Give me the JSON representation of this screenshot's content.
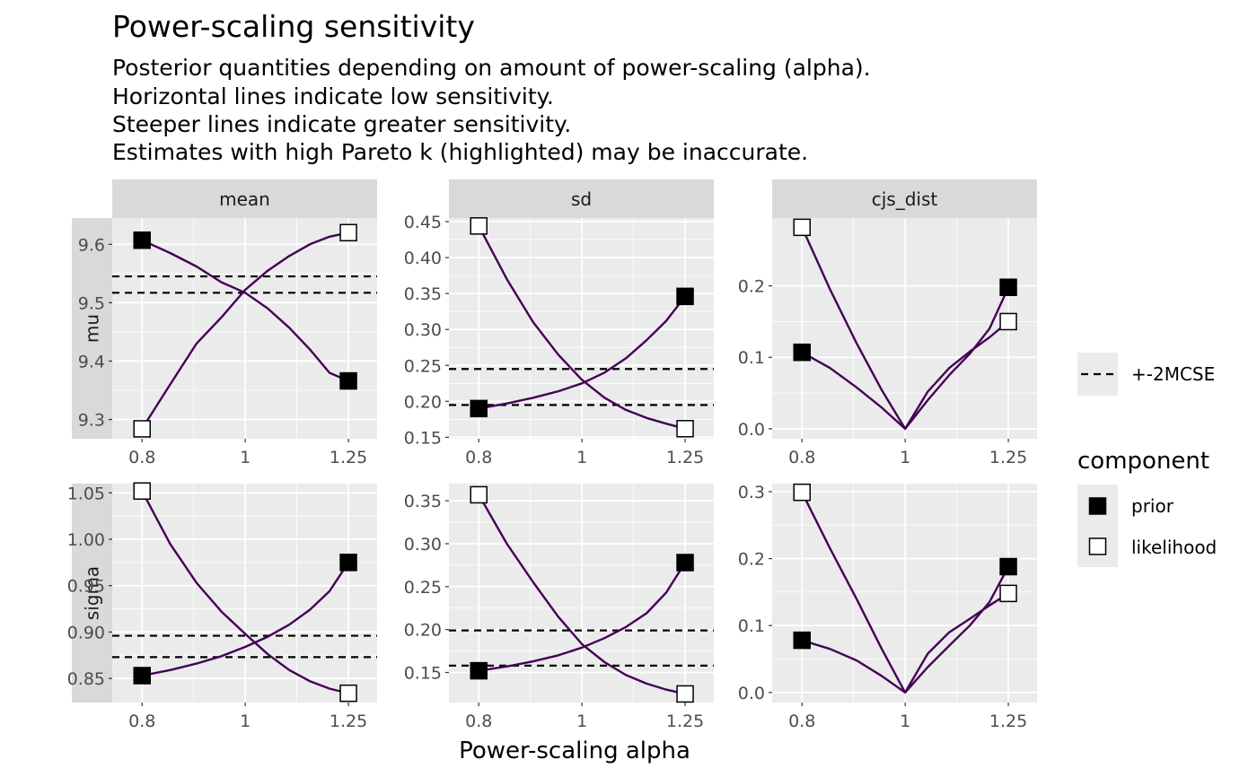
{
  "chart_data": {
    "type": "line",
    "title": "Power-scaling sensitivity",
    "subtitle": [
      "Posterior quantities depending on amount of power-scaling (alpha).",
      "Horizontal lines indicate low sensitivity.",
      "Steeper lines indicate greater sensitivity.",
      "Estimates with high Pareto k (highlighted) may be inaccurate."
    ],
    "xlabel": "Power-scaling alpha",
    "x_ticks": [
      0.8,
      1,
      1.25
    ],
    "x_tick_labels": [
      "0.8",
      "1",
      "1.25"
    ],
    "x_log_scale": true,
    "xlim": [
      0.75,
      1.33
    ],
    "columns": [
      "mean",
      "sd",
      "cjs_dist"
    ],
    "rows": [
      "mu",
      "sigma"
    ],
    "line_color": "#440154",
    "panel_background": "#ebebeb",
    "strip_background": "#d9d9d9",
    "legend": {
      "mcse_label": "+-2MCSE",
      "title": "component",
      "items": [
        {
          "label": "prior",
          "fill": "#000000"
        },
        {
          "label": "likelihood",
          "fill": "#ffffff"
        }
      ]
    },
    "panels": [
      {
        "row": "mu",
        "column": "mean",
        "ylim": [
          9.267,
          9.645
        ],
        "y_ticks": [
          9.3,
          9.4,
          9.5,
          9.6
        ],
        "y_tick_labels": [
          "9.3",
          "9.4",
          "9.5",
          "9.6"
        ],
        "hlines": [
          9.545,
          9.517
        ],
        "series": [
          {
            "name": "prior",
            "x": [
              0.8,
              0.85,
              0.9,
              0.95,
              1.0,
              1.05,
              1.1,
              1.15,
              1.2,
              1.25
            ],
            "y": [
              9.607,
              9.585,
              9.562,
              9.535,
              9.517,
              9.49,
              9.457,
              9.42,
              9.38,
              9.366
            ]
          },
          {
            "name": "likelihood",
            "x": [
              0.8,
              0.85,
              0.9,
              0.95,
              1.0,
              1.05,
              1.1,
              1.15,
              1.2,
              1.25
            ],
            "y": [
              9.284,
              9.36,
              9.43,
              9.475,
              9.522,
              9.555,
              9.58,
              9.6,
              9.613,
              9.62
            ]
          }
        ]
      },
      {
        "row": "mu",
        "column": "sd",
        "ylim": [
          0.148,
          0.455
        ],
        "y_ticks": [
          0.15,
          0.2,
          0.25,
          0.3,
          0.35,
          0.4,
          0.45
        ],
        "y_tick_labels": [
          "0.15",
          "0.20",
          "0.25",
          "0.30",
          "0.35",
          "0.40",
          "0.45"
        ],
        "hlines": [
          0.245,
          0.195
        ],
        "series": [
          {
            "name": "prior",
            "x": [
              0.8,
              0.85,
              0.9,
              0.95,
              1.0,
              1.05,
              1.1,
              1.15,
              1.2,
              1.25
            ],
            "y": [
              0.19,
              0.197,
              0.205,
              0.214,
              0.225,
              0.24,
              0.26,
              0.285,
              0.312,
              0.346
            ]
          },
          {
            "name": "likelihood",
            "x": [
              0.8,
              0.85,
              0.9,
              0.95,
              1.0,
              1.05,
              1.1,
              1.15,
              1.2,
              1.25
            ],
            "y": [
              0.444,
              0.37,
              0.31,
              0.265,
              0.23,
              0.205,
              0.188,
              0.177,
              0.169,
              0.162
            ]
          }
        ]
      },
      {
        "row": "mu",
        "column": "cjs_dist",
        "ylim": [
          -0.014,
          0.295
        ],
        "y_ticks": [
          0.0,
          0.1,
          0.2
        ],
        "y_tick_labels": [
          "0.0",
          "0.1",
          "0.2"
        ],
        "hlines": [],
        "series": [
          {
            "name": "prior",
            "x": [
              0.8,
              0.85,
              0.9,
              0.95,
              1.0,
              1.05,
              1.1,
              1.15,
              1.2,
              1.25
            ],
            "y": [
              0.107,
              0.085,
              0.058,
              0.03,
              0.0,
              0.04,
              0.075,
              0.105,
              0.14,
              0.198
            ]
          },
          {
            "name": "likelihood",
            "x": [
              0.8,
              0.85,
              0.9,
              0.95,
              1.0,
              1.05,
              1.1,
              1.15,
              1.2,
              1.25
            ],
            "y": [
              0.282,
              0.195,
              0.12,
              0.055,
              0.0,
              0.052,
              0.085,
              0.108,
              0.128,
              0.15
            ]
          }
        ]
      },
      {
        "row": "sigma",
        "column": "mean",
        "ylim": [
          0.824,
          1.06
        ],
        "y_ticks": [
          0.85,
          0.9,
          0.95,
          1.0,
          1.05
        ],
        "y_tick_labels": [
          "0.85",
          "0.90",
          "0.95",
          "1.00",
          "1.05"
        ],
        "hlines": [
          0.896,
          0.873
        ],
        "series": [
          {
            "name": "prior",
            "x": [
              0.8,
              0.85,
              0.9,
              0.95,
              1.0,
              1.05,
              1.1,
              1.15,
              1.2,
              1.25
            ],
            "y": [
              0.853,
              0.859,
              0.866,
              0.874,
              0.884,
              0.895,
              0.908,
              0.924,
              0.944,
              0.975
            ]
          },
          {
            "name": "likelihood",
            "x": [
              0.8,
              0.85,
              0.9,
              0.95,
              1.0,
              1.05,
              1.1,
              1.15,
              1.2,
              1.25
            ],
            "y": [
              1.052,
              0.995,
              0.953,
              0.922,
              0.898,
              0.876,
              0.859,
              0.847,
              0.839,
              0.834
            ]
          }
        ]
      },
      {
        "row": "sigma",
        "column": "sd",
        "ylim": [
          0.115,
          0.37
        ],
        "y_ticks": [
          0.15,
          0.2,
          0.25,
          0.3,
          0.35
        ],
        "y_tick_labels": [
          "0.15",
          "0.20",
          "0.25",
          "0.30",
          "0.35"
        ],
        "hlines": [
          0.199,
          0.158
        ],
        "series": [
          {
            "name": "prior",
            "x": [
              0.8,
              0.85,
              0.9,
              0.95,
              1.0,
              1.05,
              1.1,
              1.15,
              1.2,
              1.25
            ],
            "y": [
              0.152,
              0.157,
              0.163,
              0.17,
              0.179,
              0.19,
              0.203,
              0.219,
              0.243,
              0.278
            ]
          },
          {
            "name": "likelihood",
            "x": [
              0.8,
              0.85,
              0.9,
              0.95,
              1.0,
              1.05,
              1.1,
              1.15,
              1.2,
              1.25
            ],
            "y": [
              0.357,
              0.3,
              0.255,
              0.215,
              0.183,
              0.162,
              0.147,
              0.137,
              0.13,
              0.125
            ]
          }
        ]
      },
      {
        "row": "sigma",
        "column": "cjs_dist",
        "ylim": [
          -0.015,
          0.312
        ],
        "y_ticks": [
          0.0,
          0.1,
          0.2,
          0.3
        ],
        "y_tick_labels": [
          "0.0",
          "0.1",
          "0.2",
          "0.3"
        ],
        "hlines": [],
        "series": [
          {
            "name": "prior",
            "x": [
              0.8,
              0.85,
              0.9,
              0.95,
              1.0,
              1.05,
              1.1,
              1.15,
              1.2,
              1.25
            ],
            "y": [
              0.078,
              0.065,
              0.048,
              0.025,
              0.0,
              0.038,
              0.07,
              0.1,
              0.135,
              0.188
            ]
          },
          {
            "name": "likelihood",
            "x": [
              0.8,
              0.85,
              0.9,
              0.95,
              1.0,
              1.05,
              1.1,
              1.15,
              1.2,
              1.25
            ],
            "y": [
              0.299,
              0.215,
              0.14,
              0.066,
              0.0,
              0.058,
              0.09,
              0.11,
              0.13,
              0.148
            ]
          }
        ]
      }
    ]
  }
}
